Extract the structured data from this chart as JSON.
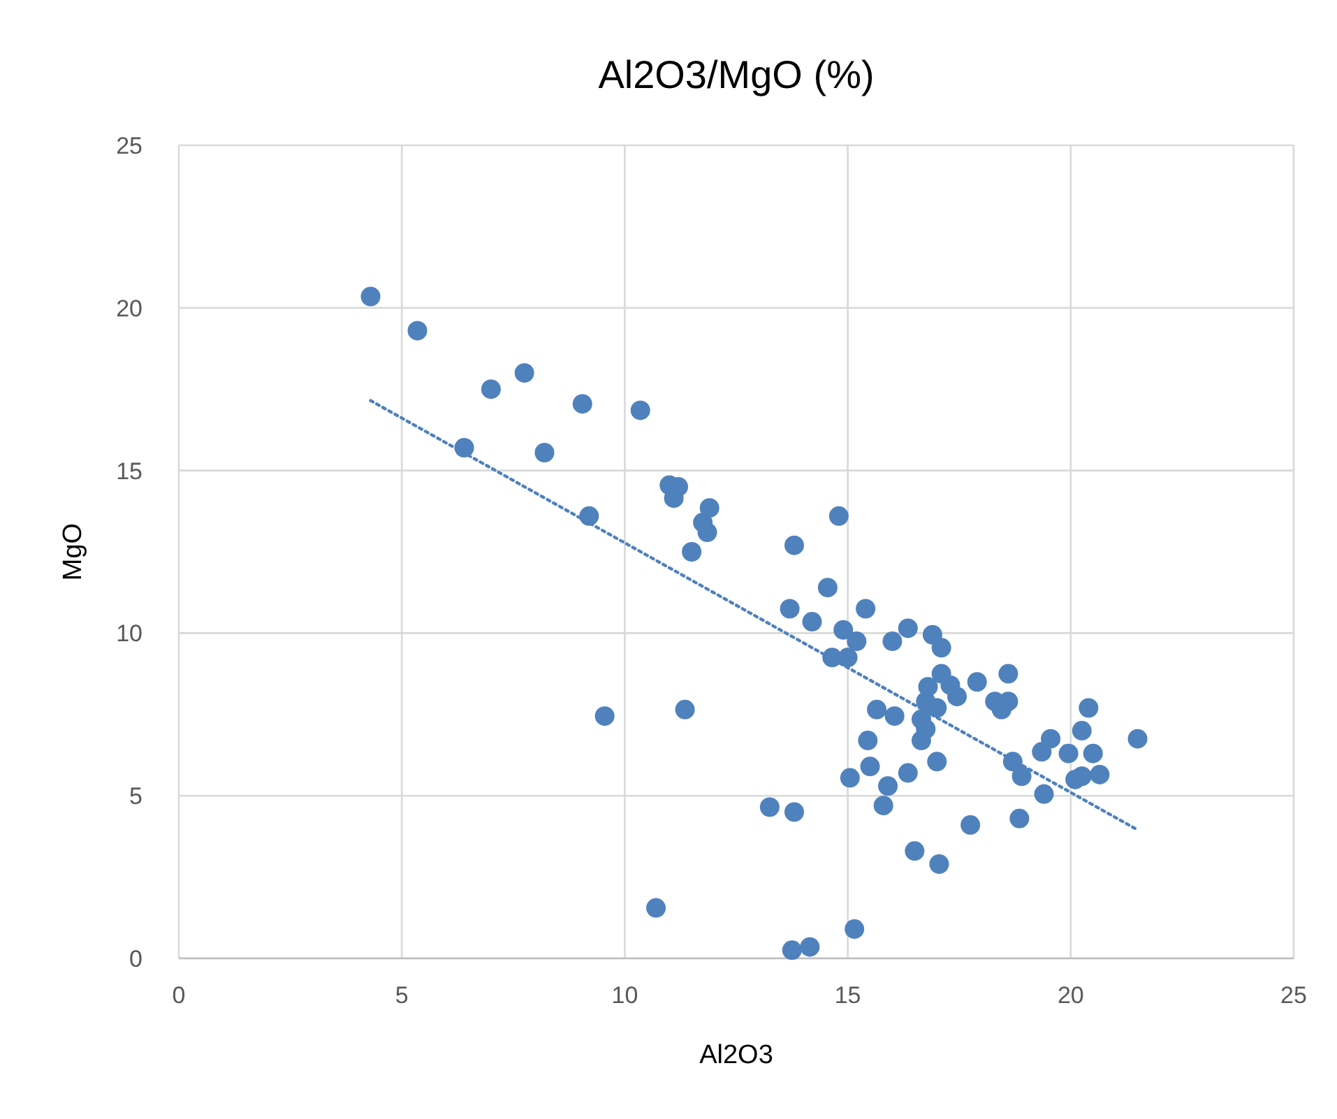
{
  "chart_data": {
    "type": "scatter",
    "title": "Al2O3/MgO (%)",
    "xlabel": "Al2O3",
    "ylabel": "MgO",
    "xlim": [
      0,
      25
    ],
    "xticks": [
      0,
      5,
      10,
      15,
      20,
      25
    ],
    "ylim": [
      0,
      25
    ],
    "yticks": [
      0,
      5,
      10,
      15,
      20,
      25
    ],
    "grid": true,
    "marker": "circle",
    "series": [
      {
        "color": "#4f81bd",
        "x": [
          4.3,
          5.35,
          6.4,
          7.0,
          7.75,
          8.2,
          9.05,
          9.2,
          9.55,
          10.35,
          10.7,
          11.0,
          11.2,
          11.1,
          11.35,
          11.5,
          11.75,
          11.85,
          11.9,
          13.25,
          13.75,
          13.8,
          13.8,
          13.7,
          14.15,
          14.2,
          14.55,
          14.65,
          14.8,
          14.9,
          15.0,
          15.05,
          15.15,
          15.2,
          15.4,
          15.45,
          15.5,
          15.65,
          15.8,
          15.9,
          16.05,
          16.0,
          16.35,
          16.35,
          16.5,
          16.65,
          16.65,
          16.75,
          16.75,
          16.8,
          16.9,
          17.0,
          17.0,
          17.05,
          17.1,
          17.1,
          17.3,
          17.45,
          17.75,
          17.9,
          18.3,
          18.6,
          18.45,
          18.6,
          18.7,
          18.85,
          18.9,
          19.35,
          19.4,
          19.55,
          19.95,
          20.1,
          20.25,
          20.25,
          20.4,
          20.5,
          20.65,
          21.5
        ],
        "values": [
          20.35,
          19.3,
          15.7,
          17.5,
          18.0,
          15.55,
          17.05,
          13.6,
          7.45,
          16.85,
          1.55,
          14.55,
          14.5,
          14.15,
          7.65,
          12.5,
          13.4,
          13.1,
          13.85,
          4.65,
          0.25,
          4.5,
          12.7,
          10.75,
          0.35,
          10.35,
          11.4,
          9.25,
          13.6,
          10.1,
          9.25,
          5.55,
          0.9,
          9.75,
          10.75,
          6.7,
          5.9,
          7.65,
          4.7,
          5.3,
          7.45,
          9.75,
          5.7,
          10.15,
          3.3,
          6.7,
          7.35,
          7.05,
          7.9,
          8.35,
          9.95,
          7.7,
          6.05,
          2.9,
          9.55,
          8.75,
          8.4,
          8.05,
          4.1,
          8.5,
          7.9,
          7.9,
          7.65,
          8.75,
          6.05,
          4.3,
          5.6,
          6.35,
          5.05,
          6.75,
          6.3,
          5.5,
          5.6,
          7.0,
          7.7,
          6.3,
          5.65,
          6.75
        ]
      },
      {
        "type": "line",
        "color": "#4f81bd",
        "line_style": "dotted",
        "marker": "none",
        "x": [
          4.3,
          21.5
        ],
        "values": [
          17.15,
          3.95
        ]
      }
    ]
  }
}
